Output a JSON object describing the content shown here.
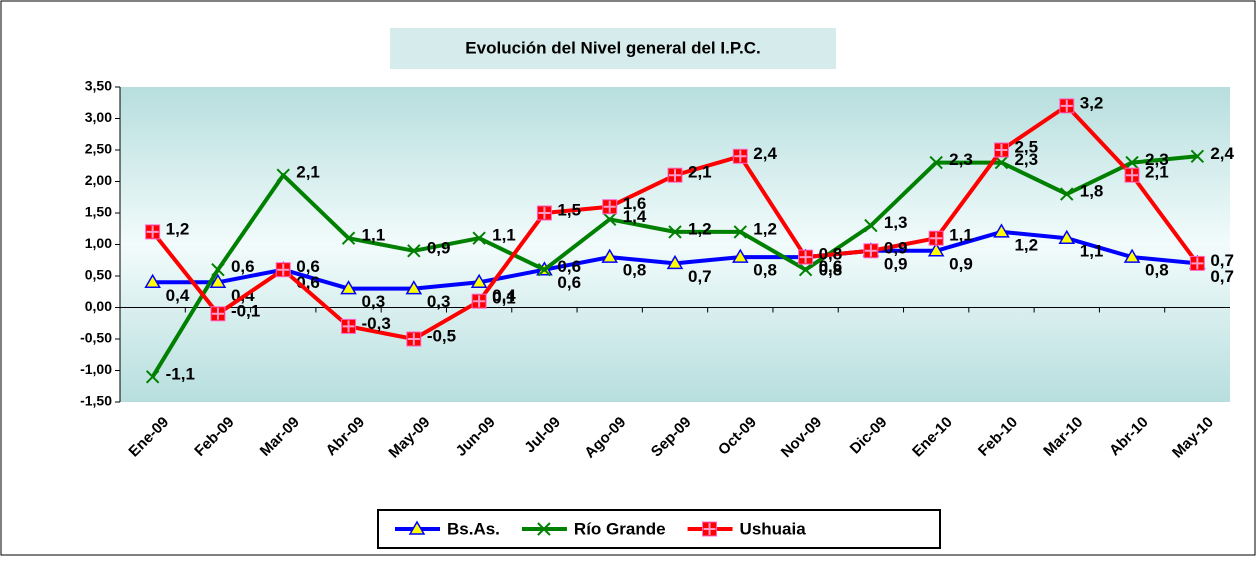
{
  "chart_data": {
    "type": "line",
    "title": "Evolución del Nivel general del I.P.C.",
    "categories": [
      "Ene-09",
      "Feb-09",
      "Mar-09",
      "Abr-09",
      "May-09",
      "Jun-09",
      "Jul-09",
      "Ago-09",
      "Sep-09",
      "Oct-09",
      "Nov-09",
      "Dic-09",
      "Ene-10",
      "Feb-10",
      "Mar-10",
      "Abr-10",
      "May-10"
    ],
    "series": [
      {
        "name": "Bs.As.",
        "color": "#0000ff",
        "marker": "triangle",
        "values": [
          0.4,
          0.4,
          0.6,
          0.3,
          0.3,
          0.4,
          0.6,
          0.8,
          0.7,
          0.8,
          0.8,
          0.9,
          0.9,
          1.2,
          1.1,
          0.8,
          0.7
        ],
        "value_labels": [
          "0,4",
          "0,4",
          "0,6",
          "0,3",
          "0,3",
          "0,4",
          "0,6",
          "0,8",
          "0,7",
          "0,8",
          "0,8",
          "0,9",
          "0,9",
          "1,2",
          "1,1",
          "0,8",
          "0,7"
        ]
      },
      {
        "name": "Río Grande",
        "color": "#008000",
        "marker": "x",
        "values": [
          -1.1,
          0.6,
          2.1,
          1.1,
          0.9,
          1.1,
          0.6,
          1.4,
          1.2,
          1.2,
          0.6,
          1.3,
          2.3,
          2.3,
          1.8,
          2.3,
          2.4
        ],
        "value_labels": [
          "-1,1",
          "0,6",
          "2,1",
          "1,1",
          "0,9",
          "1,1",
          "0,6",
          "1,4",
          "1,2",
          "1,2",
          "0,6",
          "1,3",
          "2,3",
          "2,3",
          "1,8",
          "2,3",
          "2,4"
        ]
      },
      {
        "name": "Ushuaia",
        "color": "#ff0000",
        "marker": "square",
        "values": [
          1.2,
          -0.1,
          0.6,
          -0.3,
          -0.5,
          0.1,
          1.5,
          1.6,
          2.1,
          2.4,
          0.8,
          0.9,
          1.1,
          2.5,
          3.2,
          2.1,
          0.7
        ],
        "value_labels": [
          "1,2",
          "-0,1",
          "0,6",
          "-0,3",
          "-0,5",
          "0,1",
          "1,5",
          "1,6",
          "2,1",
          "2,4",
          "0,8",
          "0,9",
          "1,1",
          "2,5",
          "3,2",
          "2,1",
          "0,7"
        ]
      }
    ],
    "ylim": [
      -1.5,
      3.5
    ],
    "yticks": [
      {
        "value": -1.5,
        "label": "-1,50"
      },
      {
        "value": -1,
        "label": "-1,00"
      },
      {
        "value": -0.5,
        "label": "-0,50"
      },
      {
        "value": 0,
        "label": "0,00"
      },
      {
        "value": 0.5,
        "label": "0,50"
      },
      {
        "value": 1,
        "label": "1,00"
      },
      {
        "value": 1.5,
        "label": "1,50"
      },
      {
        "value": 2,
        "label": "2,00"
      },
      {
        "value": 2.5,
        "label": "2,50"
      },
      {
        "value": 3,
        "label": "3,00"
      },
      {
        "value": 3.5,
        "label": "3,50"
      }
    ]
  }
}
